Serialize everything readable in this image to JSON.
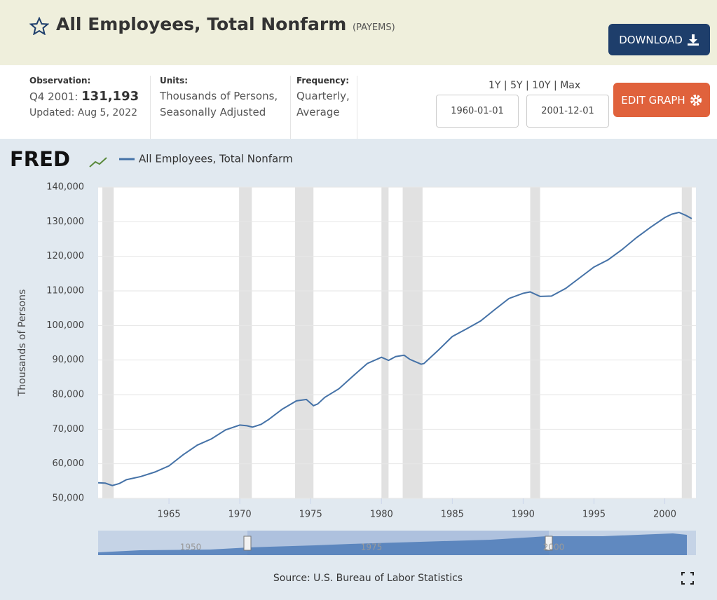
{
  "header": {
    "title": "All Employees, Total Nonfarm",
    "series_id": "(PAYEMS)",
    "download": "DOWNLOAD"
  },
  "info": {
    "observation_label": "Observation:",
    "observation_period": "Q4 2001:",
    "observation_value": "131,193",
    "updated": "Updated: Aug 5, 2022",
    "units_label": "Units:",
    "units": "Thousands of Persons, Seasonally Adjusted",
    "frequency_label": "Frequency:",
    "frequency": "Quarterly, Average"
  },
  "controls": {
    "ranges": [
      "1Y",
      "5Y",
      "10Y",
      "Max"
    ],
    "start_date": "1960-01-01",
    "end_date": "2001-12-01",
    "edit_graph": "EDIT GRAPH"
  },
  "logo": "FRED",
  "chart_data": {
    "type": "line",
    "x": [
      1960.0,
      1960.5,
      1961.0,
      1961.5,
      1962.0,
      1963.0,
      1964.0,
      1965.0,
      1966.0,
      1967.0,
      1968.0,
      1969.0,
      1970.0,
      1970.5,
      1970.9,
      1971.5,
      1972.0,
      1973.0,
      1974.0,
      1974.7,
      1975.2,
      1975.5,
      1976.0,
      1977.0,
      1978.0,
      1979.0,
      1980.0,
      1980.5,
      1981.0,
      1981.6,
      1982.0,
      1982.8,
      1983.0,
      1984.0,
      1985.0,
      1986.0,
      1987.0,
      1988.0,
      1989.0,
      1990.0,
      1990.5,
      1991.2,
      1992.0,
      1993.0,
      1994.0,
      1995.0,
      1996.0,
      1997.0,
      1998.0,
      1999.0,
      2000.0,
      2000.5,
      2001.0,
      2001.5,
      2001.9
    ],
    "series": [
      {
        "name": "All Employees, Total Nonfarm",
        "color": "#4572a7",
        "values": [
          54500,
          54400,
          53700,
          54300,
          55400,
          56300,
          57600,
          59400,
          62600,
          65400,
          67200,
          69800,
          71200,
          71000,
          70600,
          71400,
          72700,
          75800,
          78200,
          78600,
          76800,
          77300,
          79200,
          81700,
          85400,
          89000,
          90800,
          89900,
          91000,
          91400,
          90200,
          88800,
          89000,
          92800,
          96800,
          99000,
          101300,
          104600,
          107800,
          109300,
          109700,
          108400,
          108500,
          110700,
          113800,
          116900,
          119000,
          122000,
          125400,
          128400,
          131200,
          132200,
          132700,
          131800,
          130900
        ]
      }
    ],
    "recessions": [
      [
        1960.3,
        1961.1
      ],
      [
        1969.95,
        1970.85
      ],
      [
        1973.9,
        1975.2
      ],
      [
        1980.0,
        1980.5
      ],
      [
        1981.5,
        1982.9
      ],
      [
        1990.5,
        1991.2
      ],
      [
        2001.2,
        2001.9
      ]
    ],
    "xlim": [
      1960,
      2002.2
    ],
    "xticks": [
      1965,
      1970,
      1975,
      1980,
      1985,
      1990,
      1995,
      2000
    ],
    "ylim": [
      50000,
      140000
    ],
    "yticks": [
      {
        "value": 50000,
        "label": "50,000"
      },
      {
        "value": 60000,
        "label": "60,000"
      },
      {
        "value": 70000,
        "label": "70,000"
      },
      {
        "value": 80000,
        "label": "80,000"
      },
      {
        "value": 90000,
        "label": "90,000"
      },
      {
        "value": 100000,
        "label": "100,000"
      },
      {
        "value": 110000,
        "label": "110,000"
      },
      {
        "value": 120000,
        "label": "120,000"
      },
      {
        "value": 130000,
        "label": "130,000"
      },
      {
        "value": 140000,
        "label": "140,000"
      }
    ],
    "ylabel": "Thousands of Persons",
    "grid": true,
    "recession_color": "#e1e1e1",
    "source": "Source: U.S. Bureau of Labor Statistics"
  },
  "navigator": {
    "labels": [
      "1950",
      "1975",
      "2000"
    ]
  }
}
